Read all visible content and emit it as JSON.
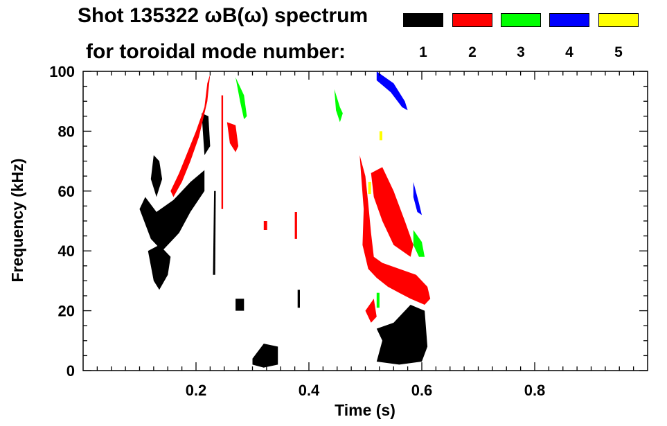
{
  "chart_data": {
    "type": "heatmap",
    "title_line1": "Shot 135322 ωB(ω) spectrum",
    "title_line2": "for toroidal mode number:",
    "xlabel": "Time (s)",
    "ylabel": "Frequency (kHz)",
    "xlim": [
      0.0,
      1.0
    ],
    "ylim": [
      0,
      100
    ],
    "xticks": [
      0.2,
      0.4,
      0.6,
      0.8
    ],
    "xtick_labels": [
      "0.2",
      "0.4",
      "0.6",
      "0.8"
    ],
    "yticks": [
      0,
      20,
      40,
      60,
      80,
      100
    ],
    "ytick_labels": [
      "0",
      "20",
      "40",
      "60",
      "80",
      "100"
    ],
    "grid": false,
    "legend_placement": "top-right",
    "legend": [
      {
        "mode": "1",
        "color": "#000000"
      },
      {
        "mode": "2",
        "color": "#ff0000"
      },
      {
        "mode": "3",
        "color": "#00ff00"
      },
      {
        "mode": "4",
        "color": "#0000ff"
      },
      {
        "mode": "5",
        "color": "#ffff00"
      }
    ],
    "regions": [
      {
        "mode": "1",
        "color": "#000000",
        "points": [
          [
            0.1,
            54
          ],
          [
            0.12,
            44
          ],
          [
            0.14,
            40
          ],
          [
            0.17,
            46
          ],
          [
            0.19,
            53
          ],
          [
            0.215,
            60
          ],
          [
            0.215,
            67
          ],
          [
            0.19,
            63
          ],
          [
            0.16,
            57
          ],
          [
            0.13,
            53
          ],
          [
            0.11,
            58
          ]
        ]
      },
      {
        "mode": "1",
        "color": "#000000",
        "points": [
          [
            0.115,
            40
          ],
          [
            0.125,
            30
          ],
          [
            0.135,
            27
          ],
          [
            0.15,
            32
          ],
          [
            0.155,
            38
          ],
          [
            0.135,
            42
          ]
        ]
      },
      {
        "mode": "1",
        "color": "#000000",
        "points": [
          [
            0.125,
            72
          ],
          [
            0.135,
            70
          ],
          [
            0.14,
            64
          ],
          [
            0.13,
            58
          ],
          [
            0.12,
            64
          ]
        ]
      },
      {
        "mode": "1",
        "color": "#000000",
        "points": [
          [
            0.21,
            86
          ],
          [
            0.222,
            85
          ],
          [
            0.225,
            75
          ],
          [
            0.215,
            72
          ]
        ]
      },
      {
        "mode": "1",
        "color": "#000000",
        "points": [
          [
            0.232,
            60
          ],
          [
            0.235,
            60
          ],
          [
            0.234,
            32
          ],
          [
            0.23,
            32
          ]
        ]
      },
      {
        "mode": "1",
        "color": "#000000",
        "points": [
          [
            0.27,
            24
          ],
          [
            0.285,
            24
          ],
          [
            0.285,
            20
          ],
          [
            0.27,
            20
          ]
        ]
      },
      {
        "mode": "1",
        "color": "#000000",
        "points": [
          [
            0.3,
            4
          ],
          [
            0.32,
            9
          ],
          [
            0.345,
            8
          ],
          [
            0.345,
            2
          ],
          [
            0.32,
            1
          ],
          [
            0.3,
            2
          ]
        ]
      },
      {
        "mode": "1",
        "color": "#000000",
        "points": [
          [
            0.38,
            27
          ],
          [
            0.384,
            27
          ],
          [
            0.384,
            21
          ],
          [
            0.38,
            21
          ]
        ]
      },
      {
        "mode": "1",
        "color": "#000000",
        "points": [
          [
            0.52,
            14
          ],
          [
            0.55,
            16
          ],
          [
            0.58,
            22
          ],
          [
            0.605,
            20
          ],
          [
            0.61,
            8
          ],
          [
            0.6,
            3
          ],
          [
            0.56,
            2
          ],
          [
            0.52,
            3
          ],
          [
            0.53,
            10
          ]
        ]
      },
      {
        "mode": "2",
        "color": "#ff0000",
        "points": [
          [
            0.155,
            60
          ],
          [
            0.17,
            66
          ],
          [
            0.185,
            73
          ],
          [
            0.2,
            80
          ],
          [
            0.215,
            88
          ],
          [
            0.22,
            96
          ],
          [
            0.225,
            99
          ],
          [
            0.22,
            90
          ],
          [
            0.205,
            78
          ],
          [
            0.19,
            70
          ],
          [
            0.175,
            63
          ],
          [
            0.16,
            58
          ]
        ]
      },
      {
        "mode": "2",
        "color": "#ff0000",
        "points": [
          [
            0.255,
            83
          ],
          [
            0.27,
            82
          ],
          [
            0.275,
            75
          ],
          [
            0.27,
            73
          ],
          [
            0.26,
            76
          ]
        ]
      },
      {
        "mode": "2",
        "color": "#ff0000",
        "points": [
          [
            0.245,
            92
          ],
          [
            0.248,
            92
          ],
          [
            0.248,
            54
          ],
          [
            0.245,
            54
          ]
        ]
      },
      {
        "mode": "2",
        "color": "#ff0000",
        "points": [
          [
            0.375,
            53
          ],
          [
            0.379,
            53
          ],
          [
            0.379,
            44
          ],
          [
            0.375,
            44
          ]
        ]
      },
      {
        "mode": "2",
        "color": "#ff0000",
        "points": [
          [
            0.32,
            50
          ],
          [
            0.326,
            50
          ],
          [
            0.326,
            47
          ],
          [
            0.32,
            47
          ]
        ]
      },
      {
        "mode": "2",
        "color": "#ff0000",
        "points": [
          [
            0.49,
            72
          ],
          [
            0.5,
            65
          ],
          [
            0.505,
            56
          ],
          [
            0.51,
            46
          ],
          [
            0.515,
            38
          ],
          [
            0.53,
            36
          ],
          [
            0.56,
            34
          ],
          [
            0.59,
            32
          ],
          [
            0.61,
            28
          ],
          [
            0.615,
            24
          ],
          [
            0.605,
            22
          ],
          [
            0.58,
            24
          ],
          [
            0.56,
            26
          ],
          [
            0.54,
            28
          ],
          [
            0.52,
            31
          ],
          [
            0.505,
            34
          ],
          [
            0.495,
            42
          ],
          [
            0.497,
            54
          ],
          [
            0.493,
            64
          ]
        ]
      },
      {
        "mode": "2",
        "color": "#ff0000",
        "points": [
          [
            0.51,
            66
          ],
          [
            0.53,
            68
          ],
          [
            0.55,
            60
          ],
          [
            0.57,
            50
          ],
          [
            0.585,
            42
          ],
          [
            0.58,
            38
          ],
          [
            0.55,
            42
          ],
          [
            0.53,
            50
          ],
          [
            0.515,
            58
          ]
        ]
      },
      {
        "mode": "2",
        "color": "#ff0000",
        "points": [
          [
            0.5,
            20
          ],
          [
            0.515,
            24
          ],
          [
            0.52,
            18
          ],
          [
            0.51,
            16
          ]
        ]
      },
      {
        "mode": "3",
        "color": "#00ff00",
        "points": [
          [
            0.445,
            94
          ],
          [
            0.455,
            88
          ],
          [
            0.46,
            86
          ],
          [
            0.455,
            83
          ],
          [
            0.448,
            87
          ]
        ]
      },
      {
        "mode": "3",
        "color": "#00ff00",
        "points": [
          [
            0.27,
            98
          ],
          [
            0.285,
            92
          ],
          [
            0.29,
            85
          ],
          [
            0.285,
            84
          ],
          [
            0.278,
            90
          ]
        ]
      },
      {
        "mode": "3",
        "color": "#00ff00",
        "points": [
          [
            0.585,
            47
          ],
          [
            0.6,
            43
          ],
          [
            0.605,
            38
          ],
          [
            0.595,
            38
          ],
          [
            0.585,
            42
          ]
        ]
      },
      {
        "mode": "3",
        "color": "#00ff00",
        "points": [
          [
            0.52,
            26
          ],
          [
            0.525,
            26
          ],
          [
            0.525,
            21
          ],
          [
            0.52,
            21
          ]
        ]
      },
      {
        "mode": "4",
        "color": "#0000ff",
        "points": [
          [
            0.52,
            100
          ],
          [
            0.55,
            96
          ],
          [
            0.57,
            90
          ],
          [
            0.575,
            87
          ],
          [
            0.565,
            88
          ],
          [
            0.545,
            93
          ],
          [
            0.52,
            97
          ]
        ]
      },
      {
        "mode": "4",
        "color": "#0000ff",
        "points": [
          [
            0.585,
            63
          ],
          [
            0.595,
            56
          ],
          [
            0.6,
            52
          ],
          [
            0.592,
            53
          ],
          [
            0.585,
            58
          ]
        ]
      },
      {
        "mode": "5",
        "color": "#ffff00",
        "points": [
          [
            0.505,
            63
          ],
          [
            0.51,
            63
          ],
          [
            0.51,
            59
          ],
          [
            0.505,
            59
          ]
        ]
      },
      {
        "mode": "5",
        "color": "#ffff00",
        "points": [
          [
            0.525,
            80
          ],
          [
            0.53,
            80
          ],
          [
            0.53,
            77
          ],
          [
            0.525,
            77
          ]
        ]
      }
    ]
  }
}
